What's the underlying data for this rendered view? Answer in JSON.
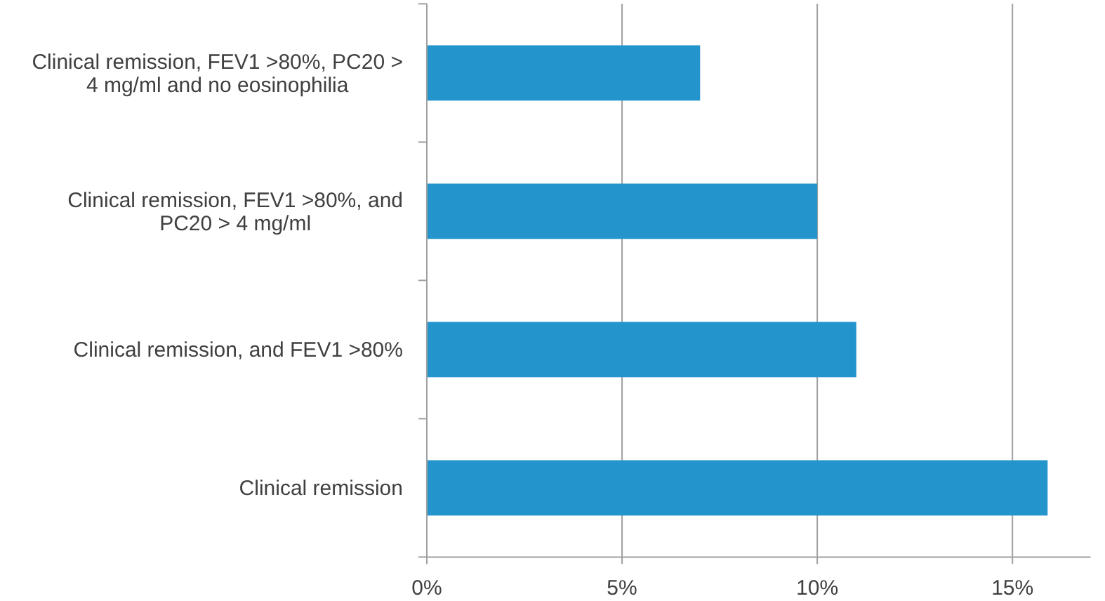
{
  "chart_data": {
    "type": "bar",
    "orientation": "horizontal",
    "categories": [
      "Clinical remission, FEV1 >80%, PC20 > 4 mg/ml and no eosinophilia",
      "Clinical remission, FEV1 >80%, and PC20 > 4 mg/ml",
      "Clinical remission, and FEV1 >80%",
      "Clinical remission"
    ],
    "values": [
      7,
      10,
      11,
      15.9
    ],
    "color": "#2394cc",
    "xlim": [
      0,
      17
    ],
    "xticks": [
      {
        "value": 0,
        "label": "0%"
      },
      {
        "value": 5,
        "label": "5%"
      },
      {
        "value": 10,
        "label": "10%"
      },
      {
        "value": 15,
        "label": "15%"
      }
    ],
    "grid": "x"
  }
}
